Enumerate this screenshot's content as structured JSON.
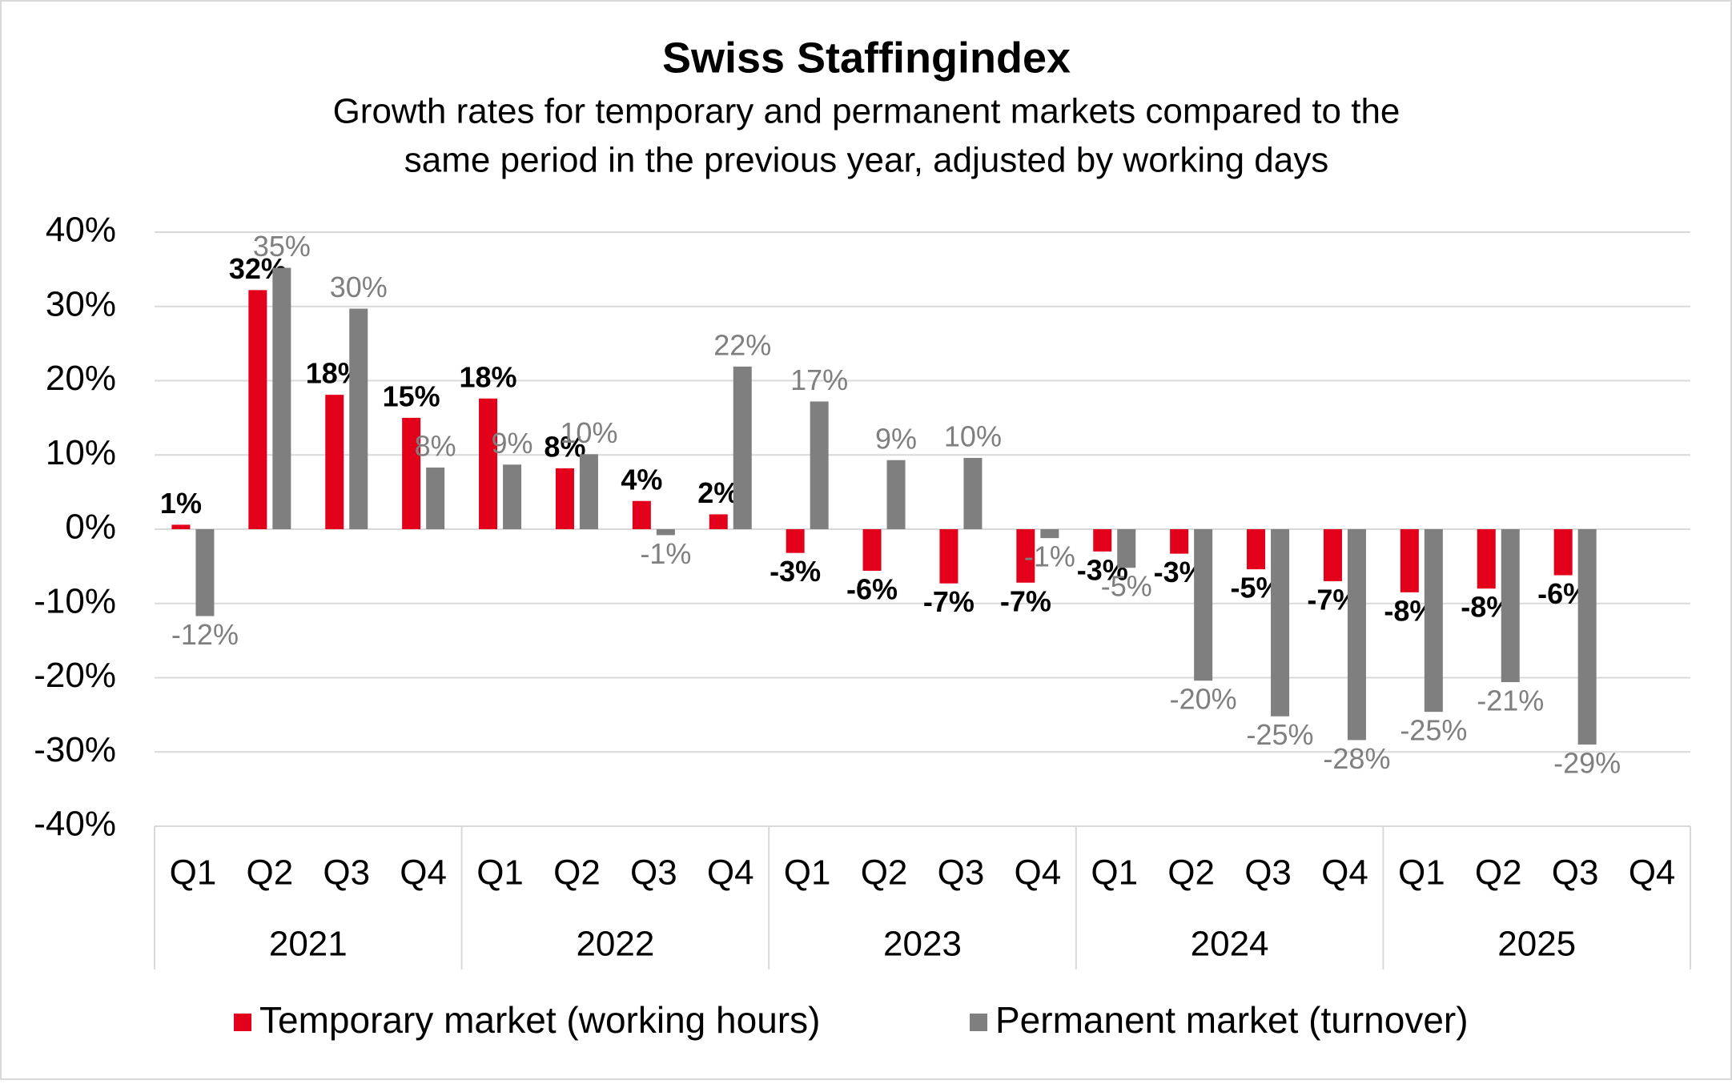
{
  "chart_data": {
    "type": "bar",
    "title": "Swiss Staffingindex",
    "subtitle": [
      "Growth rates for temporary and permanent markets compared to the",
      "same period in the previous year, adjusted by working days"
    ],
    "categories": [
      "Q1",
      "Q2",
      "Q3",
      "Q4",
      "Q1",
      "Q2",
      "Q3",
      "Q4",
      "Q1",
      "Q2",
      "Q3",
      "Q4",
      "Q1",
      "Q2",
      "Q3",
      "Q4",
      "Q1",
      "Q2",
      "Q3",
      "Q4"
    ],
    "category_groups": [
      "2021",
      "2022",
      "2023",
      "2024",
      "2025"
    ],
    "series": [
      {
        "name": "Temporary market (working hours)",
        "color": "#e2001a",
        "values": [
          0.6,
          32.2,
          18.1,
          15.0,
          17.6,
          8.2,
          3.8,
          2.0,
          -3.2,
          -5.6,
          -7.3,
          -7.2,
          -3.0,
          -3.3,
          -5.4,
          -7.0,
          -8.5,
          -8.0,
          -6.2,
          null
        ],
        "value_labels": [
          "1%",
          "32%",
          "18%",
          "15%",
          "18%",
          "8%",
          "4%",
          "2%",
          "-3%",
          "-6%",
          "-7%",
          "-7%",
          "-3%",
          "-3%",
          "-5%",
          "-7%",
          "-8%",
          "-8%",
          "-6%",
          null
        ]
      },
      {
        "name": "Permanent market (turnover)",
        "color": "#7f7f7f",
        "values": [
          -11.7,
          35.2,
          29.7,
          8.3,
          8.7,
          10.1,
          -0.8,
          21.9,
          17.2,
          9.3,
          9.6,
          -1.2,
          -5.2,
          -20.4,
          -25.2,
          -28.4,
          -24.6,
          -20.6,
          -29.0,
          null
        ],
        "value_labels": [
          "-12%",
          "35%",
          "30%",
          "8%",
          "9%",
          "10%",
          "-1%",
          "22%",
          "17%",
          "9%",
          "10%",
          "-1%",
          "-5%",
          "-20%",
          "-25%",
          "-28%",
          "-25%",
          "-21%",
          "-29%",
          null
        ]
      }
    ],
    "ylim": [
      -40,
      40
    ],
    "yticks": [
      {
        "value": -40,
        "label": "-40%"
      },
      {
        "value": -30,
        "label": "-30%"
      },
      {
        "value": -20,
        "label": "-20%"
      },
      {
        "value": -10,
        "label": "-10%"
      },
      {
        "value": 0,
        "label": "0%"
      },
      {
        "value": 10,
        "label": "10%"
      },
      {
        "value": 20,
        "label": "20%"
      },
      {
        "value": 30,
        "label": "30%"
      },
      {
        "value": 40,
        "label": "40%"
      }
    ],
    "grid": true,
    "legend": "bottom"
  }
}
